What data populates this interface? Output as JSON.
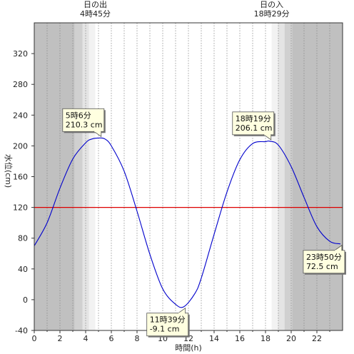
{
  "chart_data": {
    "type": "line",
    "title": "",
    "xlabel": "時間(h)",
    "ylabel": "水位(cm)",
    "xlim": [
      0,
      24
    ],
    "ylim": [
      -40,
      360
    ],
    "x_ticks": [
      0,
      2,
      4,
      6,
      8,
      10,
      12,
      14,
      16,
      18,
      20,
      22
    ],
    "y_ticks": [
      -40,
      0,
      40,
      80,
      120,
      160,
      200,
      240,
      280,
      320
    ],
    "grid": "vertical dotted every hour",
    "x_unit": "hour",
    "series": [
      {
        "color": "#0000cc",
        "x": [
          0,
          1,
          2,
          3,
          4,
          4.5,
          5.1,
          5.5,
          6,
          7,
          8,
          9,
          10,
          11,
          11.65,
          12.5,
          13,
          14,
          15,
          16,
          17,
          18,
          18.32,
          19,
          20,
          21,
          22,
          23,
          23.83
        ],
        "y": [
          70,
          100,
          145,
          183,
          204,
          209,
          210.3,
          209,
          200,
          167,
          115,
          59,
          14,
          -6,
          -9.1,
          8,
          28,
          85,
          140,
          182,
          203,
          205.5,
          206.1,
          201,
          173,
          133,
          95,
          76,
          72.5
        ]
      }
    ],
    "reference_lines": [
      {
        "y": 120,
        "color": "#dd0000"
      }
    ],
    "sun": {
      "sunrise_hour": 4.75,
      "sunset_hour": 18.48,
      "sunrise_label": [
        "日の出",
        "4時45分"
      ],
      "sunset_label": [
        "日の入",
        "18時29分"
      ]
    },
    "annotations": [
      {
        "x": 5.1,
        "y": 210.3,
        "lines": [
          "5時6分",
          "210.3 cm"
        ],
        "position": "above-left"
      },
      {
        "x": 11.65,
        "y": -9.1,
        "lines": [
          "11時39分",
          "-9.1 cm"
        ],
        "position": "below-left"
      },
      {
        "x": 18.32,
        "y": 206.1,
        "lines": [
          "18時19分",
          "206.1 cm"
        ],
        "position": "above-left"
      },
      {
        "x": 23.83,
        "y": 72.5,
        "lines": [
          "23時50分",
          "72.5 cm"
        ],
        "position": "below-left"
      }
    ],
    "colors": {
      "night": "#c0c0c0",
      "twilight_dark": "#d0d0d0",
      "twilight_light": "#e4e4e4",
      "dawn": "#f2f2f2",
      "day": "#ffffff",
      "tide_line": "#0000cc",
      "reference_line": "#dd0000",
      "callout_fill": "#ffffe0"
    }
  }
}
